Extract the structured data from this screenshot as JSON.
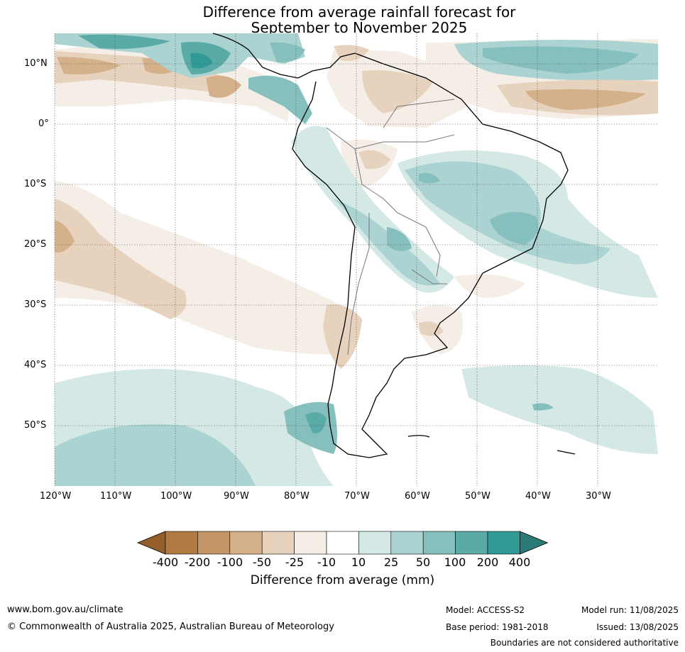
{
  "title_line1": "Difference from average rainfall forecast for",
  "title_line2": "September to November 2025",
  "lat_ticks": [
    "10°N",
    "0°",
    "10°S",
    "20°S",
    "30°S",
    "40°S",
    "50°S"
  ],
  "lon_ticks": [
    "120°W",
    "110°W",
    "100°W",
    "90°W",
    "80°W",
    "70°W",
    "60°W",
    "50°W",
    "40°W",
    "30°W"
  ],
  "colorbar": {
    "labels": [
      "-400",
      "-200",
      "-100",
      "-50",
      "-25",
      "-10",
      "10",
      "25",
      "50",
      "100",
      "200",
      "400"
    ],
    "colors": [
      "#955f2c",
      "#b07a42",
      "#c49567",
      "#d4b08b",
      "#e7d2bd",
      "#f4eee7",
      "#ffffff",
      "#d4e8e6",
      "#abd3d1",
      "#86c0be",
      "#5aaaa8",
      "#329a96",
      "#2a7b78"
    ],
    "title": "Difference from average (mm)"
  },
  "footer": {
    "url": "www.bom.gov.au/climate",
    "copyright": "© Commonwealth of Australia 2025, Australian Bureau of Meteorology",
    "model": "Model: ACCESS-S2",
    "base_period": "Base period: 1981-2018",
    "model_run": "Model run: 11/08/2025",
    "issued": "Issued: 13/08/2025",
    "disclaimer": "Boundaries are not considered authoritative"
  }
}
